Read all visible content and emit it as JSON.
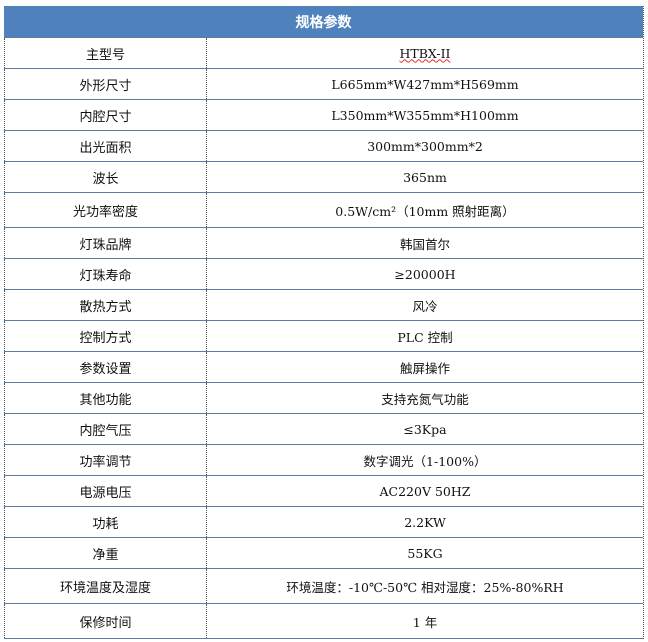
{
  "header": "规格参数",
  "rows": [
    {
      "key": "主型号",
      "value": "HTBX-II"
    },
    {
      "key": "外形尺寸",
      "value": "L665mm*W427mm*H569mm"
    },
    {
      "key": "内腔尺寸",
      "value": "L350mm*W355mm*H100mm"
    },
    {
      "key": "出光面积",
      "value": "300mm*300mm*2"
    },
    {
      "key": "波长",
      "value": "365nm"
    },
    {
      "key": "光功率密度",
      "value": "0.5W/cm²（10mm 照射距离）"
    },
    {
      "key": "灯珠品牌",
      "value": "韩国首尔"
    },
    {
      "key": "灯珠寿命",
      "value": "≥20000H"
    },
    {
      "key": "散热方式",
      "value": "风冷"
    },
    {
      "key": "控制方式",
      "value": "PLC 控制"
    },
    {
      "key": "参数设置",
      "value": "触屏操作"
    },
    {
      "key": "其他功能",
      "value": "支持充氮气功能"
    },
    {
      "key": "内腔气压",
      "value": "≤3Kpa"
    },
    {
      "key": "功率调节",
      "value": "数字调光（1-100%）"
    },
    {
      "key": "电源电压",
      "value": "AC220V 50HZ"
    },
    {
      "key": "功耗",
      "value": "2.2KW"
    },
    {
      "key": "净重",
      "value": "55KG"
    },
    {
      "key": "环境温度及湿度",
      "value": "环境温度：-10℃-50℃ 相对湿度：25%-80%RH"
    },
    {
      "key": "保修时间",
      "value": "1 年"
    }
  ],
  "colors": {
    "header_bg": "#4f81bd",
    "border": "#5b7aa5"
  }
}
